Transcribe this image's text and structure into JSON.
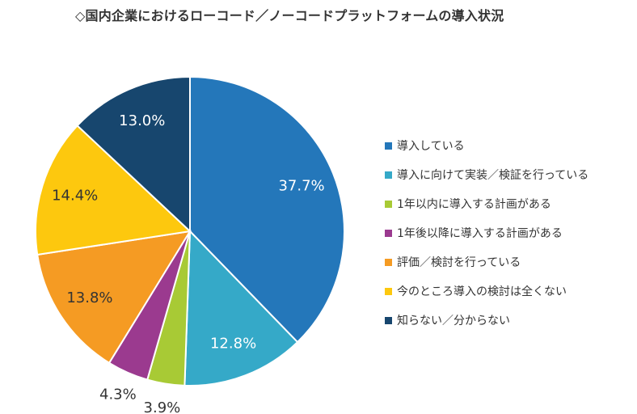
{
  "chart_data": {
    "type": "pie",
    "title": "◇国内企業におけるローコード／ノーコードプラットフォームの導入状況",
    "slices": [
      {
        "label": "導入している",
        "value": 37.7,
        "display": "37.7%",
        "color": "#2477BA"
      },
      {
        "label": "導入に向けて実装／検証を行っている",
        "value": 12.8,
        "display": "12.8%",
        "color": "#35A9C8"
      },
      {
        "label": "1年以内に導入する計画がある",
        "value": 3.9,
        "display": "3.9%",
        "color": "#A8CA35"
      },
      {
        "label": "1年後以降に導入する計画がある",
        "value": 4.3,
        "display": "4.3%",
        "color": "#9B3A8F"
      },
      {
        "label": "評価／検討を行っている",
        "value": 13.8,
        "display": "13.8%",
        "color": "#F59B23"
      },
      {
        "label": "今のところ導入の検討は全くない",
        "value": 14.4,
        "display": "14.4%",
        "color": "#FDC80E"
      },
      {
        "label": "知らない／分からない",
        "value": 13.0,
        "display": "13.0%",
        "color": "#17466E"
      }
    ],
    "legend_position": "right",
    "start_angle": "12 o'clock",
    "direction": "clockwise"
  }
}
